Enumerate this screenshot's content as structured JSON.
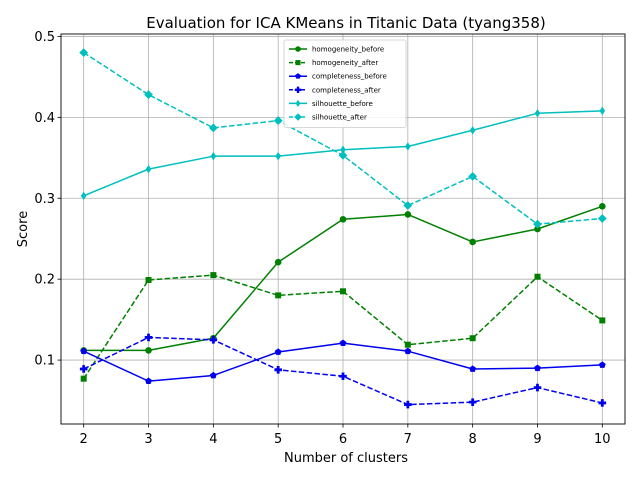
{
  "chart_data": {
    "type": "line",
    "title": "Evaluation for ICA KMeans in Titanic Data (tyang358)",
    "xlabel": "Number of clusters",
    "ylabel": "Score",
    "x": [
      2,
      3,
      4,
      5,
      6,
      7,
      8,
      9,
      10
    ],
    "xlim": [
      1.65,
      10.35
    ],
    "ylim": [
      0.021,
      0.503
    ],
    "xticks": [
      "2",
      "3",
      "4",
      "5",
      "6",
      "7",
      "8",
      "9",
      "10"
    ],
    "yticks": [
      0.1,
      0.2,
      0.3,
      0.4,
      0.5
    ],
    "ytick_labels": [
      "0.1",
      "0.2",
      "0.3",
      "0.4",
      "0.5"
    ],
    "grid": true,
    "legend_position": "top-center",
    "series": [
      {
        "name": "homogeneity_before",
        "color": "#008000",
        "dash": "solid",
        "marker": "circle",
        "values": [
          0.112,
          0.112,
          0.127,
          0.221,
          0.274,
          0.28,
          0.246,
          0.262,
          0.29
        ]
      },
      {
        "name": "homogeneity_after",
        "color": "#008000",
        "dash": "dashed",
        "marker": "square",
        "values": [
          0.077,
          0.199,
          0.205,
          0.18,
          0.185,
          0.119,
          0.127,
          0.203,
          0.149
        ]
      },
      {
        "name": "completeness_before",
        "color": "#0000ee",
        "dash": "solid",
        "marker": "pentagon",
        "values": [
          0.111,
          0.074,
          0.081,
          0.11,
          0.121,
          0.111,
          0.089,
          0.09,
          0.094
        ]
      },
      {
        "name": "completeness_after",
        "color": "#0000ee",
        "dash": "dashed",
        "marker": "plus",
        "values": [
          0.089,
          0.128,
          0.125,
          0.088,
          0.08,
          0.045,
          0.048,
          0.066,
          0.047
        ]
      },
      {
        "name": "silhouette_before",
        "color": "#00bfbf",
        "dash": "solid",
        "marker": "thin_diamond",
        "values": [
          0.303,
          0.336,
          0.352,
          0.352,
          0.36,
          0.364,
          0.384,
          0.405,
          0.408
        ]
      },
      {
        "name": "silhouette_after",
        "color": "#00bfbf",
        "dash": "dashed",
        "marker": "diamond",
        "values": [
          0.48,
          0.428,
          0.387,
          0.396,
          0.353,
          0.291,
          0.327,
          0.268,
          0.275
        ]
      }
    ]
  }
}
